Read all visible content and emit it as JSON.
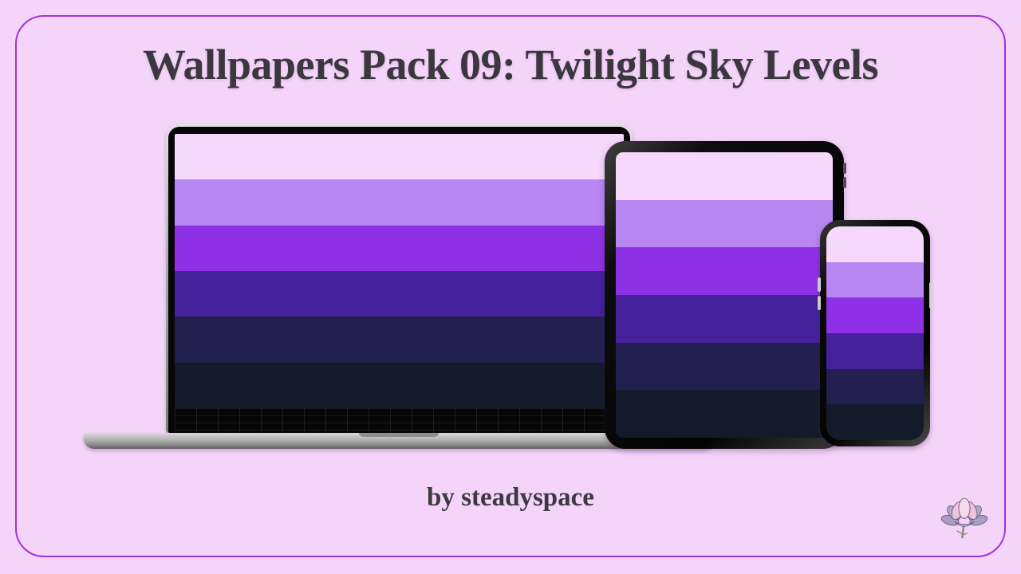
{
  "header": {
    "title": "Wallpapers Pack 09: Twilight Sky Levels"
  },
  "footer": {
    "byline": "by steadyspace"
  },
  "branding": {
    "logo_icon": "lotus-flower-icon"
  },
  "colors": {
    "background": "#f5d4fa",
    "border": "#9e34dc",
    "title_text": "#3a373d",
    "byline_text": "#3c3941"
  },
  "wallpaper_palette": [
    "#f6d8fc",
    "#b886f1",
    "#8e31e6",
    "#45219b",
    "#232050",
    "#151a2b"
  ],
  "devices": [
    {
      "type": "laptop"
    },
    {
      "type": "tablet"
    },
    {
      "type": "phone"
    }
  ]
}
